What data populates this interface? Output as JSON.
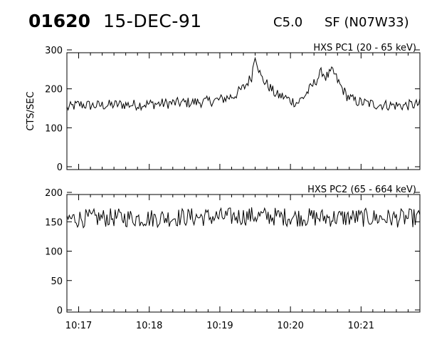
{
  "header": {
    "event_id": "01620",
    "date": "15-DEC-91",
    "flare_class": "C5.0",
    "location": "SF (N07W33)"
  },
  "chart_data": [
    {
      "type": "line",
      "title": "HXS PC1 (20 - 65 keV)",
      "ylabel": "CTS/SEC",
      "xlabel": "",
      "xlim": [
        "10:16:50",
        "10:21:50"
      ],
      "ylim": [
        0,
        300
      ],
      "yticks": [
        0,
        100,
        200,
        300
      ],
      "xticks": [
        "10:17",
        "10:18",
        "10:19",
        "10:20",
        "10:21"
      ],
      "series": [
        {
          "x_minutes_from_1017": [
            -0.17,
            0.0,
            0.2,
            0.4,
            0.6,
            0.8,
            1.0,
            1.2,
            1.4,
            1.6,
            1.8,
            2.0,
            2.2,
            2.35,
            2.45,
            2.5,
            2.58,
            2.7,
            2.8,
            2.9,
            3.0,
            3.1,
            3.2,
            3.3,
            3.45,
            3.5,
            3.55,
            3.6,
            3.7,
            3.8,
            3.9,
            4.0,
            4.2,
            4.4,
            4.6,
            4.8,
            4.98
          ],
          "values": [
            150,
            160,
            157,
            158,
            160,
            159,
            161,
            162,
            164,
            165,
            167,
            172,
            182,
            205,
            232,
            290,
            230,
            205,
            184,
            180,
            170,
            164,
            182,
            205,
            245,
            230,
            237,
            245,
            210,
            182,
            170,
            165,
            160,
            158,
            157,
            160,
            170
          ]
        }
      ]
    },
    {
      "type": "line",
      "title": "HXS PC2 (65 - 664 keV)",
      "ylabel": "",
      "xlabel": "",
      "xlim": [
        "10:16:50",
        "10:21:50"
      ],
      "ylim": [
        0,
        200
      ],
      "yticks": [
        0,
        50,
        100,
        150,
        200
      ],
      "xticks": [
        "10:17",
        "10:18",
        "10:19",
        "10:20",
        "10:21"
      ],
      "series": [
        {
          "x_minutes_from_1017": [
            -0.17,
            0.5,
            1.0,
            1.5,
            2.0,
            2.5,
            3.0,
            3.5,
            4.0,
            4.5,
            4.98
          ],
          "values": [
            155,
            157,
            156,
            158,
            158,
            160,
            158,
            157,
            157,
            156,
            157
          ]
        }
      ]
    }
  ]
}
